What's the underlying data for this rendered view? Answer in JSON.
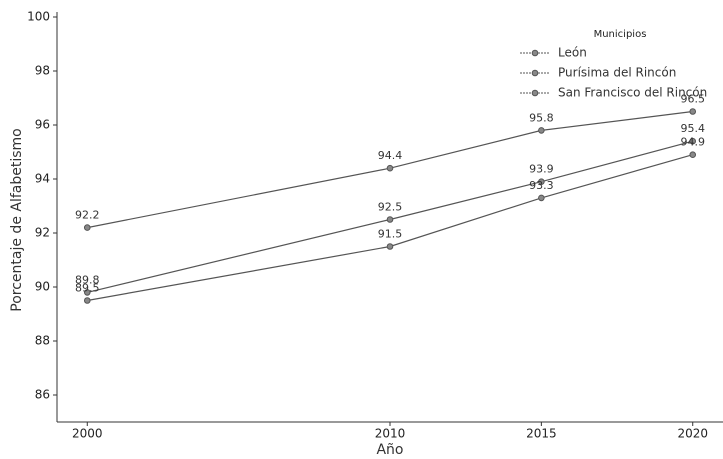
{
  "chart_data": {
    "type": "line",
    "x_label": "Año",
    "y_label": "Porcentaje de Alfabetismo",
    "x": [
      2000,
      2010,
      2015,
      2020
    ],
    "series": [
      {
        "name": "León",
        "color": "#555555",
        "values": [
          92.2,
          94.4,
          95.8,
          96.5
        ]
      },
      {
        "name": "Purísima del Rincón",
        "color": "#555555",
        "values": [
          89.8,
          92.5,
          93.9,
          95.4
        ]
      },
      {
        "name": "San Francisco del Rincón",
        "color": "#555555",
        "values": [
          89.5,
          91.5,
          93.3,
          94.9
        ]
      }
    ],
    "xlim": [
      1999,
      2021
    ],
    "xticks": [
      2000,
      2010,
      2015,
      2020
    ],
    "ylim": [
      85,
      100
    ],
    "yticks": [
      86,
      88,
      90,
      92,
      94,
      96,
      98,
      100
    ],
    "legend_title": "Municipios",
    "legend": "upper right",
    "grid": false
  }
}
